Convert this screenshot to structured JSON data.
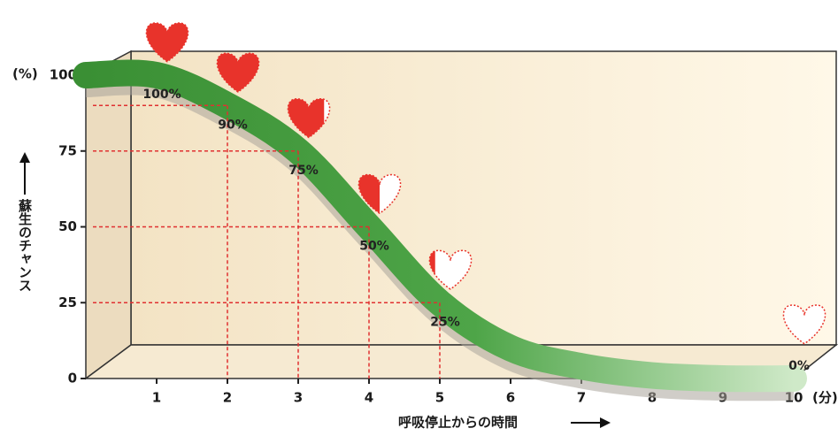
{
  "chart_data": {
    "type": "line",
    "x": [
      0,
      1,
      2,
      3,
      4,
      5,
      6,
      7,
      8,
      9,
      10
    ],
    "series": [
      {
        "color": "#3f9c3c",
        "values": [
          100,
          100,
          90,
          75,
          50,
          25,
          10,
          4,
          1,
          0,
          0
        ],
        "value_labels": [
          null,
          "100%",
          "90%",
          "75%",
          "50%",
          "25%",
          null,
          null,
          null,
          null,
          "0%"
        ]
      }
    ],
    "xlim": [
      0,
      10
    ],
    "xticks": [
      1,
      2,
      3,
      4,
      5,
      6,
      7,
      8,
      9,
      10
    ],
    "ylim": [
      0,
      100
    ],
    "yticks": [
      0,
      25,
      50,
      75,
      100
    ],
    "x_unit": "(分)",
    "y_unit": "(%)",
    "xlabel": "呼吸停止からの時間",
    "ylabel": "蘇生のチャンス",
    "guide_color": "#e03030",
    "heart_color": "#e8332b"
  }
}
